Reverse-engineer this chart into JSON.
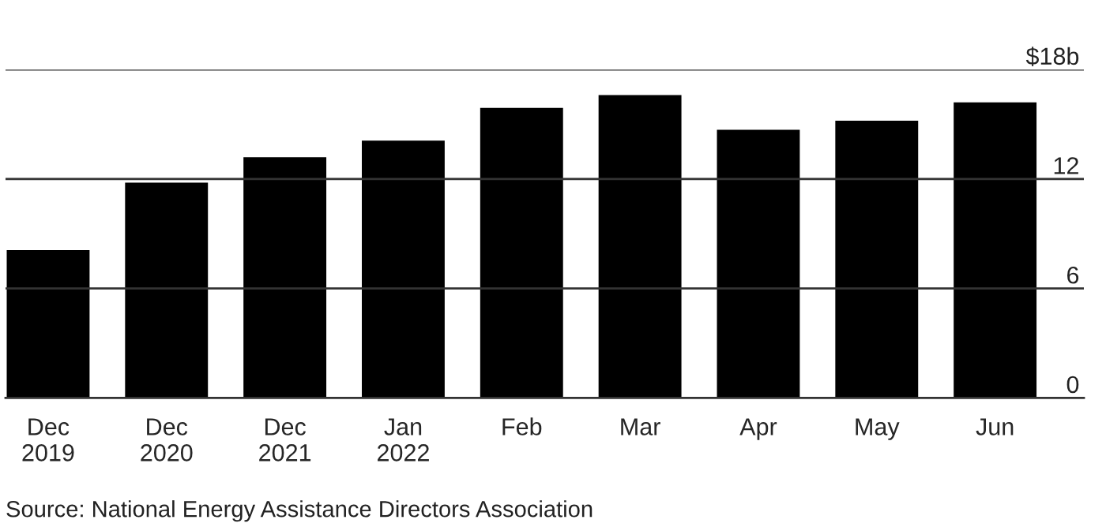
{
  "chart_data": {
    "type": "bar",
    "categories": [
      "Dec\n2019",
      "Dec\n2020",
      "Dec\n2021",
      "Jan\n2022",
      "Feb",
      "Mar",
      "Apr",
      "May",
      "Jun"
    ],
    "values": [
      8.1,
      11.8,
      13.2,
      14.1,
      15.9,
      16.6,
      14.7,
      15.2,
      16.2
    ],
    "color": "#000000",
    "ylim": [
      0,
      18
    ],
    "yticks": [
      0,
      6,
      12,
      {
        "value": 18,
        "label": "$18b"
      }
    ],
    "grid": "y",
    "annotations": [
      "Source: National Energy Assistance Directors Association"
    ]
  }
}
